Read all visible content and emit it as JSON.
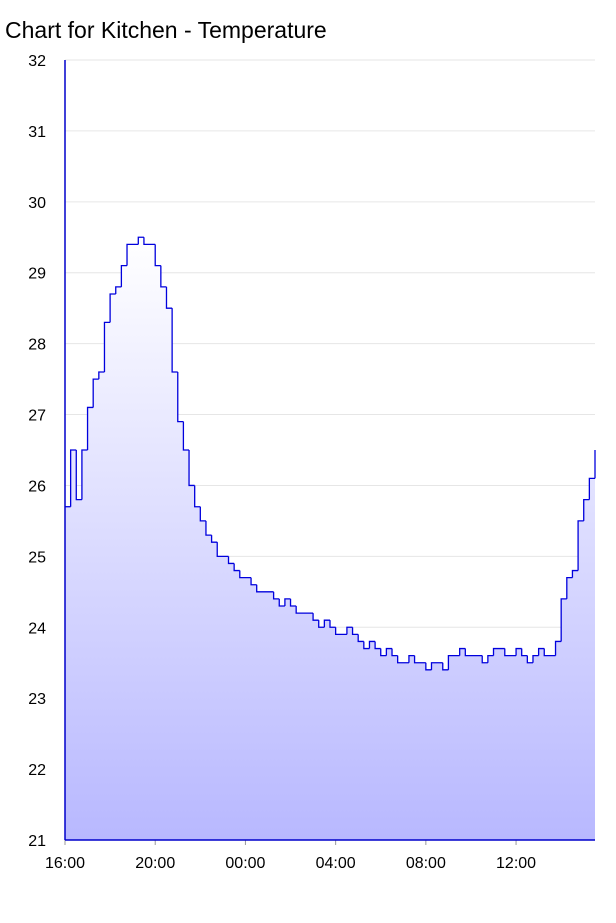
{
  "chart_data": {
    "type": "line",
    "step": true,
    "area": true,
    "title": "Chart for Kitchen - Temperature",
    "color": "#0000dd",
    "area_colors": [
      "#ffffff",
      "#b8b8ff"
    ],
    "grid": true,
    "x": [
      16,
      16.25,
      16.5,
      16.75,
      17,
      17.25,
      17.5,
      17.75,
      18,
      18.25,
      18.5,
      18.75,
      19.25,
      19.5,
      20,
      20.25,
      20.5,
      20.75,
      21,
      21.25,
      21.5,
      21.75,
      22,
      22.25,
      22.5,
      22.75,
      23.25,
      23.5,
      23.75,
      24.25,
      24.5,
      25.25,
      25.5,
      25.75,
      26,
      26.25,
      27,
      27.25,
      27.5,
      27.75,
      28,
      28.5,
      28.75,
      29,
      29.25,
      29.5,
      29.75,
      30,
      30.25,
      30.5,
      30.75,
      31.25,
      31.5,
      32,
      32.25,
      32.75,
      33,
      33.5,
      33.75,
      34.5,
      34.75,
      35,
      35.5,
      36,
      36.25,
      36.5,
      36.75,
      37,
      37.25,
      37.75,
      38,
      38.25,
      38.5,
      38.75,
      39,
      39.25,
      39.5
    ],
    "values": [
      25.7,
      26.5,
      25.8,
      26.5,
      27.1,
      27.5,
      27.6,
      28.3,
      28.7,
      28.8,
      29.1,
      29.4,
      29.5,
      29.4,
      29.1,
      28.8,
      28.5,
      27.6,
      26.9,
      26.5,
      26.0,
      25.7,
      25.5,
      25.3,
      25.2,
      25.0,
      24.9,
      24.8,
      24.7,
      24.6,
      24.5,
      24.4,
      24.3,
      24.4,
      24.3,
      24.2,
      24.1,
      24.0,
      24.1,
      24.0,
      23.9,
      24.0,
      23.9,
      23.8,
      23.7,
      23.8,
      23.7,
      23.6,
      23.7,
      23.6,
      23.5,
      23.6,
      23.5,
      23.4,
      23.5,
      23.4,
      23.6,
      23.7,
      23.6,
      23.5,
      23.6,
      23.7,
      23.6,
      23.7,
      23.6,
      23.5,
      23.6,
      23.7,
      23.6,
      23.8,
      24.4,
      24.7,
      24.8,
      25.5,
      25.8,
      26.1,
      26.5
    ],
    "xlim": [
      16,
      39.5
    ],
    "xticks": [
      {
        "value": 16,
        "label": "16:00"
      },
      {
        "value": 20,
        "label": "20:00"
      },
      {
        "value": 24,
        "label": "00:00"
      },
      {
        "value": 28,
        "label": "04:00"
      },
      {
        "value": 32,
        "label": "08:00"
      },
      {
        "value": 36,
        "label": "12:00"
      }
    ],
    "ylim": [
      21,
      32
    ],
    "yticks": [
      21,
      22,
      23,
      24,
      25,
      26,
      27,
      28,
      29,
      30,
      31,
      32
    ]
  }
}
